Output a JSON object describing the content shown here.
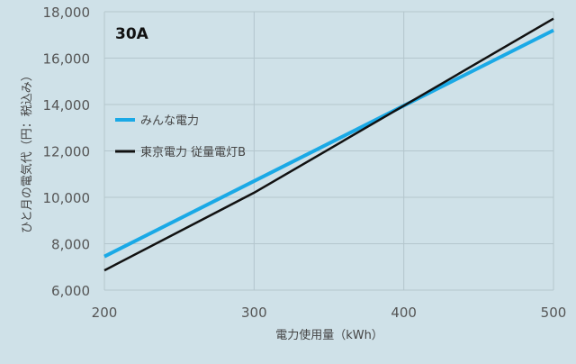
{
  "chart_data": {
    "type": "line",
    "title": "30A",
    "xlabel": "電力使用量（kWh）",
    "ylabel": "ひと月の電気代（円：税込み）",
    "xlim": [
      200,
      500
    ],
    "ylim": [
      6000,
      18000
    ],
    "x_ticks": [
      200,
      300,
      400,
      500
    ],
    "y_ticks": [
      6000,
      8000,
      10000,
      12000,
      14000,
      16000,
      18000
    ],
    "x_tick_labels": [
      "200",
      "300",
      "400",
      "500"
    ],
    "y_tick_labels": [
      "6,000",
      "8,000",
      "10,000",
      "12,000",
      "14,000",
      "16,000",
      "18,000"
    ],
    "grid": true,
    "legend_position": "left",
    "series": [
      {
        "name": "みんな電力",
        "color": "#1aa9e6",
        "x": [
          200,
          500
        ],
        "y": [
          7450,
          17200
        ]
      },
      {
        "name": "東京電力 従量電灯B",
        "color": "#111111",
        "x": [
          200,
          300,
          400,
          500
        ],
        "y": [
          6850,
          10200,
          13950,
          17700
        ]
      }
    ]
  }
}
